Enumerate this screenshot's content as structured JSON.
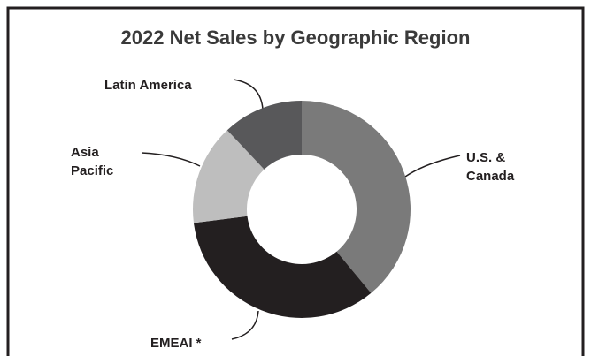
{
  "chart_data": {
    "type": "donut",
    "title": "2022 Net Sales by Geographic Region",
    "categories": [
      "U.S. & Canada",
      "EMEAI *",
      "Asia Pacific",
      "Latin America"
    ],
    "values": [
      39,
      34,
      15,
      12
    ],
    "colors": [
      "#7a7a7a",
      "#231f20",
      "#bebebe",
      "#58585a"
    ]
  }
}
